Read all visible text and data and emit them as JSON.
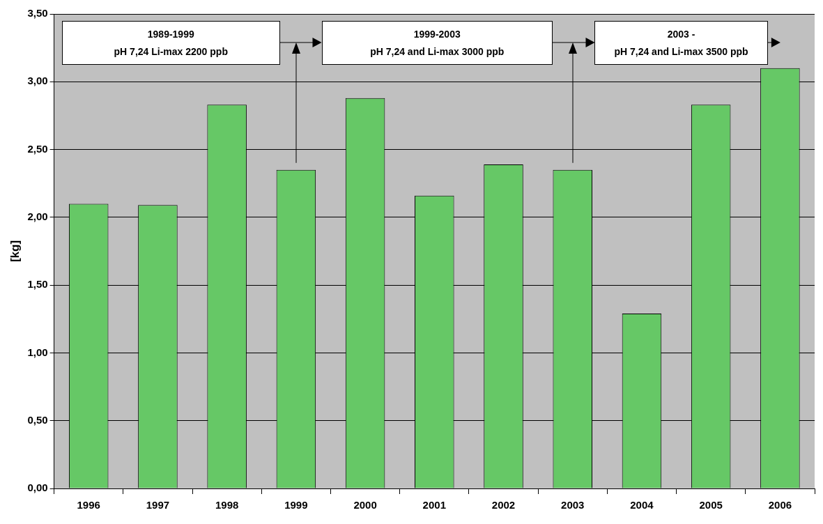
{
  "chart_data": {
    "type": "bar",
    "ylabel": "[kg]",
    "categories": [
      "1996",
      "1997",
      "1998",
      "1999",
      "2000",
      "2001",
      "2002",
      "2003",
      "2004",
      "2005",
      "2006"
    ],
    "values": [
      2.1,
      2.09,
      2.83,
      2.35,
      2.88,
      2.16,
      2.39,
      2.35,
      1.29,
      2.83,
      3.1
    ],
    "color": "#66c866",
    "ylim": [
      0,
      3.5
    ],
    "yticks": [
      {
        "value": 0,
        "label": "0,00"
      },
      {
        "value": 0.5,
        "label": "0,50"
      },
      {
        "value": 1,
        "label": "1,00"
      },
      {
        "value": 1.5,
        "label": "1,50"
      },
      {
        "value": 2,
        "label": "2,00"
      },
      {
        "value": 2.5,
        "label": "2,50"
      },
      {
        "value": 3,
        "label": "3,00"
      },
      {
        "value": 3.5,
        "label": "3,50"
      }
    ],
    "grid": "y",
    "legend": false,
    "annotations": [
      "1989-1999\npH 7,24 Li-max 2200 ppb",
      "1999-2003\npH 7,24 and Li-max 3000 ppb",
      "2003 -\npH 7,24 and Li-max 3500 ppb"
    ]
  }
}
